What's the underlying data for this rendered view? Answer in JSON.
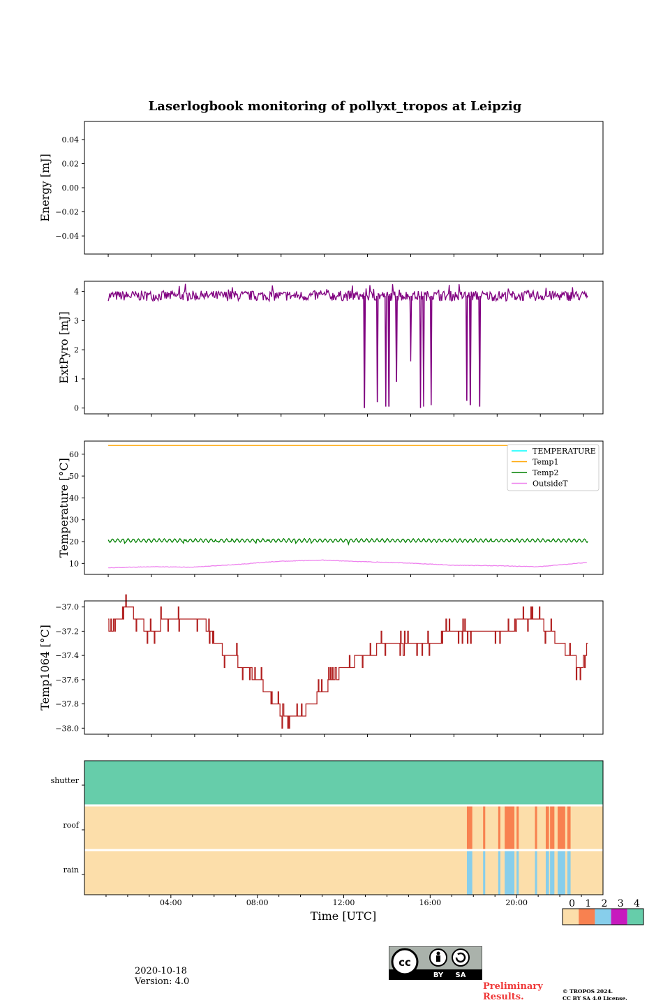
{
  "title": "Laserlogbook monitoring of pollyxt_tropos at Leipzig",
  "footer": {
    "date": "2020-10-18",
    "version": "Version: 4.0",
    "prelim_line1": "Preliminary",
    "prelim_line2": "Results.",
    "copyright_line1": "© TROPOS 2024.",
    "copyright_line2": "CC BY SA 4.0 License.",
    "cc_by": "BY",
    "cc_sa": "SA"
  },
  "x_axis": {
    "label": "Time [UTC]",
    "range_hours": [
      -1,
      23
    ],
    "data_span_hours": [
      0.1,
      22.3
    ],
    "ticks": [
      {
        "h": 3,
        "label": "04:00"
      },
      {
        "h": 7,
        "label": "08:00"
      },
      {
        "h": 11,
        "label": "12:00"
      },
      {
        "h": 15,
        "label": "16:00"
      },
      {
        "h": 19,
        "label": "20:00"
      }
    ]
  },
  "colors": {
    "extpyro": "#800080",
    "temp1": "#ffa500",
    "temp2": "#008000",
    "outsideT": "#ee82ee",
    "temperature": "#00ffff",
    "temp1064": "#b22222"
  },
  "chart_data": [
    {
      "type": "line",
      "name": "energy",
      "ylabel": "Energy [mJ]",
      "ylim": [
        -0.055,
        0.055
      ],
      "yticks": [
        0.04,
        0.02,
        0.0,
        -0.02,
        -0.04
      ],
      "ytick_labels": [
        "0.04",
        "0.02",
        "0.00",
        "−0.02",
        "−0.04"
      ],
      "series": []
    },
    {
      "type": "line",
      "name": "extpyro",
      "ylabel": "ExtPyro [mJ]",
      "ylim": [
        -0.2,
        4.35
      ],
      "yticks": [
        0,
        1,
        2,
        3,
        4
      ],
      "ytick_labels": [
        "0",
        "1",
        "2",
        "3",
        "4"
      ],
      "baseline": 3.85,
      "dropouts": [
        {
          "h": 11.95,
          "v": 0.0
        },
        {
          "h": 12.55,
          "v": 0.2
        },
        {
          "h": 12.95,
          "v": 0.05
        },
        {
          "h": 13.1,
          "v": 0.05
        },
        {
          "h": 13.45,
          "v": 0.9
        },
        {
          "h": 14.1,
          "v": 1.6
        },
        {
          "h": 14.55,
          "v": 0.0
        },
        {
          "h": 14.7,
          "v": 0.05
        },
        {
          "h": 15.05,
          "v": 0.1
        },
        {
          "h": 16.7,
          "v": 0.25
        },
        {
          "h": 16.85,
          "v": 0.1
        },
        {
          "h": 17.3,
          "v": 0.05
        }
      ]
    },
    {
      "type": "line",
      "name": "temperature",
      "ylabel": "Temperature [°C]",
      "ylim": [
        5,
        66
      ],
      "yticks": [
        10,
        20,
        30,
        40,
        50,
        60
      ],
      "ytick_labels": [
        "10",
        "20",
        "30",
        "40",
        "50",
        "60"
      ],
      "legend_position": "top-right",
      "series": [
        {
          "name": "TEMPERATURE",
          "values": []
        },
        {
          "name": "Temp1",
          "constant": 64
        },
        {
          "name": "Temp2",
          "mean": 20.5,
          "amplitude": 0.9
        },
        {
          "name": "OutsideT",
          "points": [
            [
              0.1,
              8.0
            ],
            [
              2,
              8.5
            ],
            [
              4,
              8.3
            ],
            [
              6,
              9.5
            ],
            [
              8,
              11.0
            ],
            [
              10,
              11.5
            ],
            [
              12,
              10.8
            ],
            [
              14,
              10.2
            ],
            [
              16,
              9.2
            ],
            [
              18,
              9.0
            ],
            [
              20,
              8.5
            ],
            [
              22.3,
              10.5
            ]
          ]
        }
      ]
    },
    {
      "type": "line",
      "name": "temp1064",
      "ylabel": "Temp1064 [°C]",
      "ylim": [
        -38.05,
        -36.95
      ],
      "yticks": [
        -37.0,
        -37.2,
        -37.4,
        -37.6,
        -37.8,
        -38.0
      ],
      "ytick_labels": [
        "−37.0",
        "−37.2",
        "−37.4",
        "−37.6",
        "−37.8",
        "−38.0"
      ],
      "trend": [
        [
          0.1,
          -37.2
        ],
        [
          1,
          -37.0
        ],
        [
          2,
          -37.2
        ],
        [
          3,
          -37.1
        ],
        [
          4.5,
          -37.1
        ],
        [
          5,
          -37.3
        ],
        [
          6.5,
          -37.5
        ],
        [
          7.5,
          -37.7
        ],
        [
          8.2,
          -37.9
        ],
        [
          9,
          -37.9
        ],
        [
          10,
          -37.7
        ],
        [
          11,
          -37.5
        ],
        [
          12,
          -37.4
        ],
        [
          13,
          -37.3
        ],
        [
          15,
          -37.3
        ],
        [
          16,
          -37.2
        ],
        [
          18,
          -37.2
        ],
        [
          20,
          -37.1
        ],
        [
          21,
          -37.3
        ],
        [
          22,
          -37.5
        ],
        [
          22.3,
          -37.3
        ]
      ]
    },
    {
      "type": "heatmap",
      "name": "status",
      "rows": [
        "shutter",
        "roof",
        "rain"
      ],
      "shutter_value": 4,
      "roof_events_value": 1,
      "rain_events_value": 2,
      "background_value": 0,
      "events_hours": [
        [
          16.7,
          16.95
        ],
        [
          17.45,
          17.55
        ],
        [
          18.15,
          18.25
        ],
        [
          18.45,
          18.9
        ],
        [
          19.0,
          19.1
        ],
        [
          19.85,
          19.95
        ],
        [
          20.35,
          20.5
        ],
        [
          20.55,
          20.75
        ],
        [
          20.9,
          21.25
        ],
        [
          21.35,
          21.5
        ]
      ],
      "colorbar": {
        "labels": [
          "0",
          "1",
          "2",
          "3",
          "4"
        ],
        "colors": [
          "#fcdeaa",
          "#f88150",
          "#87ceeb",
          "#c71abe",
          "#66cdaa"
        ]
      }
    }
  ]
}
